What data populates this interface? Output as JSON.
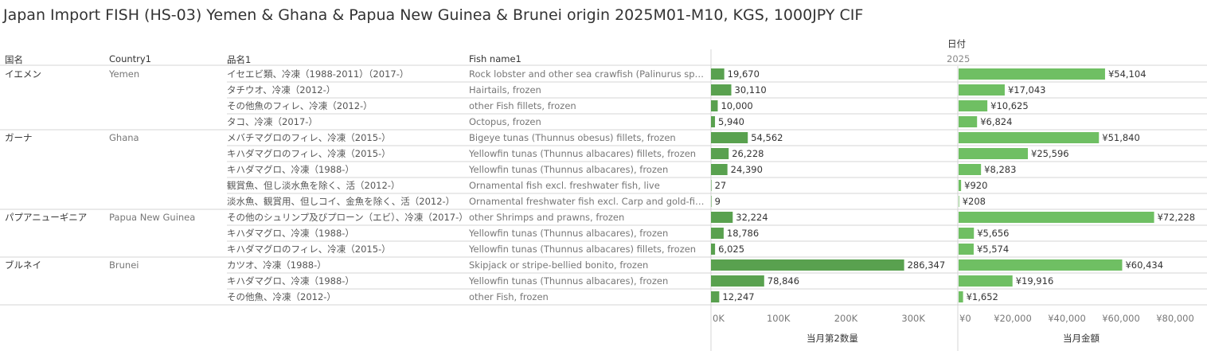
{
  "title": "Japan Import FISH (HS-03) Yemen & Ghana & Papua New Guinea & Brunei origin 2025M01-M10, KGS, 1000JPY CIF",
  "headers": {
    "kokumei": "国名",
    "country": "Country1",
    "hinmei": "品名1",
    "fish": "Fish name1",
    "date": "日付",
    "year": "2025"
  },
  "colors": {
    "bar_qty": "#59a14f",
    "bar_amt": "#6fbf63",
    "grid": "#d4d4d4"
  },
  "chart_data": {
    "type": "bar",
    "groups": [
      {
        "kokumei": "イエメン",
        "country": "Yemen"
      },
      {
        "kokumei": "ガーナ",
        "country": "Ghana"
      },
      {
        "kokumei": "パプアニューギニア",
        "country": "Papua New Guinea"
      },
      {
        "kokumei": "ブルネイ",
        "country": "Brunei"
      }
    ],
    "rows": [
      {
        "group": 0,
        "hinmei": "イセエビ類、冷凍（1988-2011）（2017-）",
        "fish": "Rock lobster and other sea crawfish (Palinurus spp., ...",
        "qty": 19670,
        "qty_label": "19,670",
        "amt": 54104,
        "amt_label": "¥54,104"
      },
      {
        "group": 0,
        "hinmei": "タチウオ、冷凍（2012-）",
        "fish": "Hairtails, frozen",
        "qty": 30110,
        "qty_label": "30,110",
        "amt": 17043,
        "amt_label": "¥17,043"
      },
      {
        "group": 0,
        "hinmei": "その他魚のフィレ、冷凍（2012-）",
        "fish": "other Fish fillets, frozen",
        "qty": 10000,
        "qty_label": "10,000",
        "amt": 10625,
        "amt_label": "¥10,625"
      },
      {
        "group": 0,
        "hinmei": "タコ、冷凍（2017-）",
        "fish": "Octopus, frozen",
        "qty": 5940,
        "qty_label": "5,940",
        "amt": 6824,
        "amt_label": "¥6,824"
      },
      {
        "group": 1,
        "hinmei": "メバチマグロのフィレ、冷凍（2015-）",
        "fish": "Bigeye tunas (Thunnus obesus) fillets, frozen",
        "qty": 54562,
        "qty_label": "54,562",
        "amt": 51840,
        "amt_label": "¥51,840"
      },
      {
        "group": 1,
        "hinmei": "キハダマグロのフィレ、冷凍（2015-）",
        "fish": "Yellowfin tunas (Thunnus albacares) fillets, frozen",
        "qty": 26228,
        "qty_label": "26,228",
        "amt": 25596,
        "amt_label": "¥25,596"
      },
      {
        "group": 1,
        "hinmei": "キハダマグロ、冷凍（1988-）",
        "fish": "Yellowfin tunas (Thunnus albacares), frozen",
        "qty": 24390,
        "qty_label": "24,390",
        "amt": 8283,
        "amt_label": "¥8,283"
      },
      {
        "group": 1,
        "hinmei": "観賞魚、但し淡水魚を除く、活（2012-）",
        "fish": "Ornamental fish excl. freshwater fish, live",
        "qty": 27,
        "qty_label": "27",
        "amt": 920,
        "amt_label": "¥920"
      },
      {
        "group": 1,
        "hinmei": "淡水魚、観賞用、但しコイ、金魚を除く、活（2012-）",
        "fish": "Ornamental freshwater fish excl. Carp and gold-fish,...",
        "qty": 9,
        "qty_label": "9",
        "amt": 208,
        "amt_label": "¥208"
      },
      {
        "group": 2,
        "hinmei": "その他のシュリンプ及びプローン（エビ）、冷凍（2017-）",
        "fish": "other Shrimps and prawns, frozen",
        "qty": 32224,
        "qty_label": "32,224",
        "amt": 72228,
        "amt_label": "¥72,228"
      },
      {
        "group": 2,
        "hinmei": "キハダマグロ、冷凍（1988-）",
        "fish": "Yellowfin tunas (Thunnus albacares), frozen",
        "qty": 18786,
        "qty_label": "18,786",
        "amt": 5656,
        "amt_label": "¥5,656"
      },
      {
        "group": 2,
        "hinmei": "キハダマグロのフィレ、冷凍（2015-）",
        "fish": "Yellowfin tunas (Thunnus albacares) fillets, frozen",
        "qty": 6025,
        "qty_label": "6,025",
        "amt": 5574,
        "amt_label": "¥5,574"
      },
      {
        "group": 3,
        "hinmei": "カツオ、冷凍（1988-）",
        "fish": "Skipjack or stripe-bellied bonito, frozen",
        "qty": 286347,
        "qty_label": "286,347",
        "amt": 60434,
        "amt_label": "¥60,434"
      },
      {
        "group": 3,
        "hinmei": "キハダマグロ、冷凍（1988-）",
        "fish": "Yellowfin tunas (Thunnus albacares), frozen",
        "qty": 78846,
        "qty_label": "78,846",
        "amt": 19916,
        "amt_label": "¥19,916"
      },
      {
        "group": 3,
        "hinmei": "その他魚、冷凍（2012-）",
        "fish": "other Fish, frozen",
        "qty": 12247,
        "qty_label": "12,247",
        "amt": 1652,
        "amt_label": "¥1,652"
      }
    ],
    "qty_axis": {
      "title": "当月第2数量",
      "min": 0,
      "max": 360000,
      "ticks": [
        0,
        100000,
        200000,
        300000
      ],
      "tick_labels": [
        "0K",
        "100K",
        "200K",
        "300K"
      ]
    },
    "amt_axis": {
      "title": "当月金額",
      "min": 0,
      "max": 90000,
      "ticks": [
        0,
        20000,
        40000,
        60000,
        80000
      ],
      "tick_labels": [
        "¥0",
        "¥20,000",
        "¥40,000",
        "¥60,000",
        "¥80,000"
      ]
    }
  }
}
